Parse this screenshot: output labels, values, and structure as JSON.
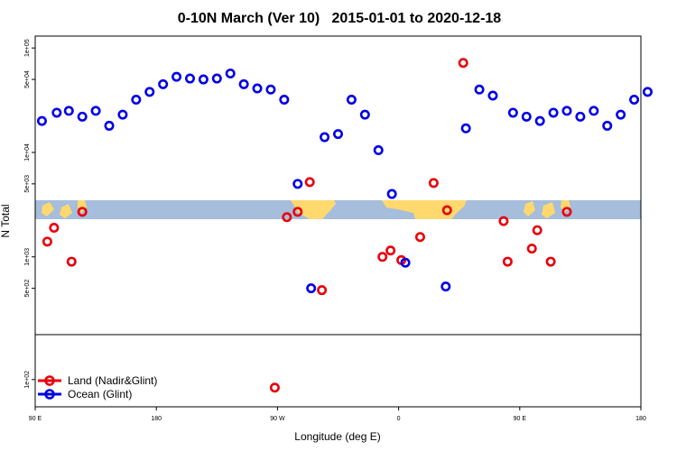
{
  "chart_data": {
    "type": "scatter",
    "title": "0-10N March (Ver 10)   2015-01-01 to 2020-12-18",
    "xlabel": "Longitude (deg E)",
    "ylabel": "N Total",
    "x_ticks": [
      {
        "value": 0,
        "label": "90 E"
      },
      {
        "value": 90,
        "label": "180"
      },
      {
        "value": 180,
        "label": "90 W"
      },
      {
        "value": 270,
        "label": "0"
      },
      {
        "value": 360,
        "label": "90 E"
      },
      {
        "value": 450,
        "label": "180"
      }
    ],
    "y_scale": "log",
    "y_ticks_upper": [
      {
        "value": 500,
        "label": "5e+02"
      },
      {
        "value": 1000,
        "label": "1e+03"
      },
      {
        "value": 5000,
        "label": "5e+03"
      },
      {
        "value": 10000,
        "label": "1e+04"
      },
      {
        "value": 50000,
        "label": "5e+04"
      },
      {
        "value": 100000,
        "label": "1e+05"
      }
    ],
    "y_ticks_lower": [
      {
        "value": 100,
        "label": "1e+02"
      }
    ],
    "background": "latitude band 0-10N world map",
    "series": [
      {
        "name": "Land (Nadir&Glint)",
        "color": "#e8000b",
        "points": [
          [
            9,
            1400
          ],
          [
            14,
            1900
          ],
          [
            27,
            900
          ],
          [
            35,
            2700
          ],
          [
            187,
            2400
          ],
          [
            195,
            2700
          ],
          [
            204,
            5200
          ],
          [
            213,
            480
          ],
          [
            258,
            1000
          ],
          [
            264,
            1150
          ],
          [
            272,
            930
          ],
          [
            286,
            1550
          ],
          [
            296,
            5100
          ],
          [
            306,
            2800
          ],
          [
            318,
            72000
          ],
          [
            348,
            2200
          ],
          [
            351,
            900
          ],
          [
            369,
            1200
          ],
          [
            373,
            1800
          ],
          [
            383,
            900
          ],
          [
            395,
            2700
          ]
        ]
      },
      {
        "name": "Ocean (Glint)",
        "color": "#0000e6",
        "points": [
          [
            5,
            20000
          ],
          [
            16,
            24000
          ],
          [
            25,
            25000
          ],
          [
            35,
            22000
          ],
          [
            45,
            25000
          ],
          [
            55,
            18000
          ],
          [
            65,
            23000
          ],
          [
            75,
            32000
          ],
          [
            85,
            38000
          ],
          [
            95,
            45000
          ],
          [
            105,
            53000
          ],
          [
            115,
            51000
          ],
          [
            125,
            50000
          ],
          [
            135,
            51000
          ],
          [
            145,
            57000
          ],
          [
            155,
            45000
          ],
          [
            165,
            41000
          ],
          [
            175,
            40000
          ],
          [
            185,
            32000
          ],
          [
            195,
            5000
          ],
          [
            205,
            500
          ],
          [
            215,
            14000
          ],
          [
            225,
            15000
          ],
          [
            235,
            32000
          ],
          [
            245,
            23000
          ],
          [
            255,
            10500
          ],
          [
            265,
            4000
          ],
          [
            275,
            880
          ],
          [
            305,
            520
          ],
          [
            320,
            17000
          ],
          [
            330,
            40000
          ],
          [
            340,
            35000
          ],
          [
            355,
            24000
          ],
          [
            365,
            22000
          ],
          [
            375,
            20000
          ],
          [
            385,
            24000
          ],
          [
            395,
            25000
          ],
          [
            405,
            22000
          ],
          [
            415,
            25000
          ],
          [
            425,
            18000
          ],
          [
            435,
            23000
          ],
          [
            445,
            32000
          ],
          [
            455,
            38000
          ]
        ]
      }
    ],
    "lower_panel_points": [
      {
        "series": "Land (Nadir&Glint)",
        "x": 178,
        "y": 90
      }
    ],
    "legend": {
      "position": "bottom-left"
    }
  }
}
